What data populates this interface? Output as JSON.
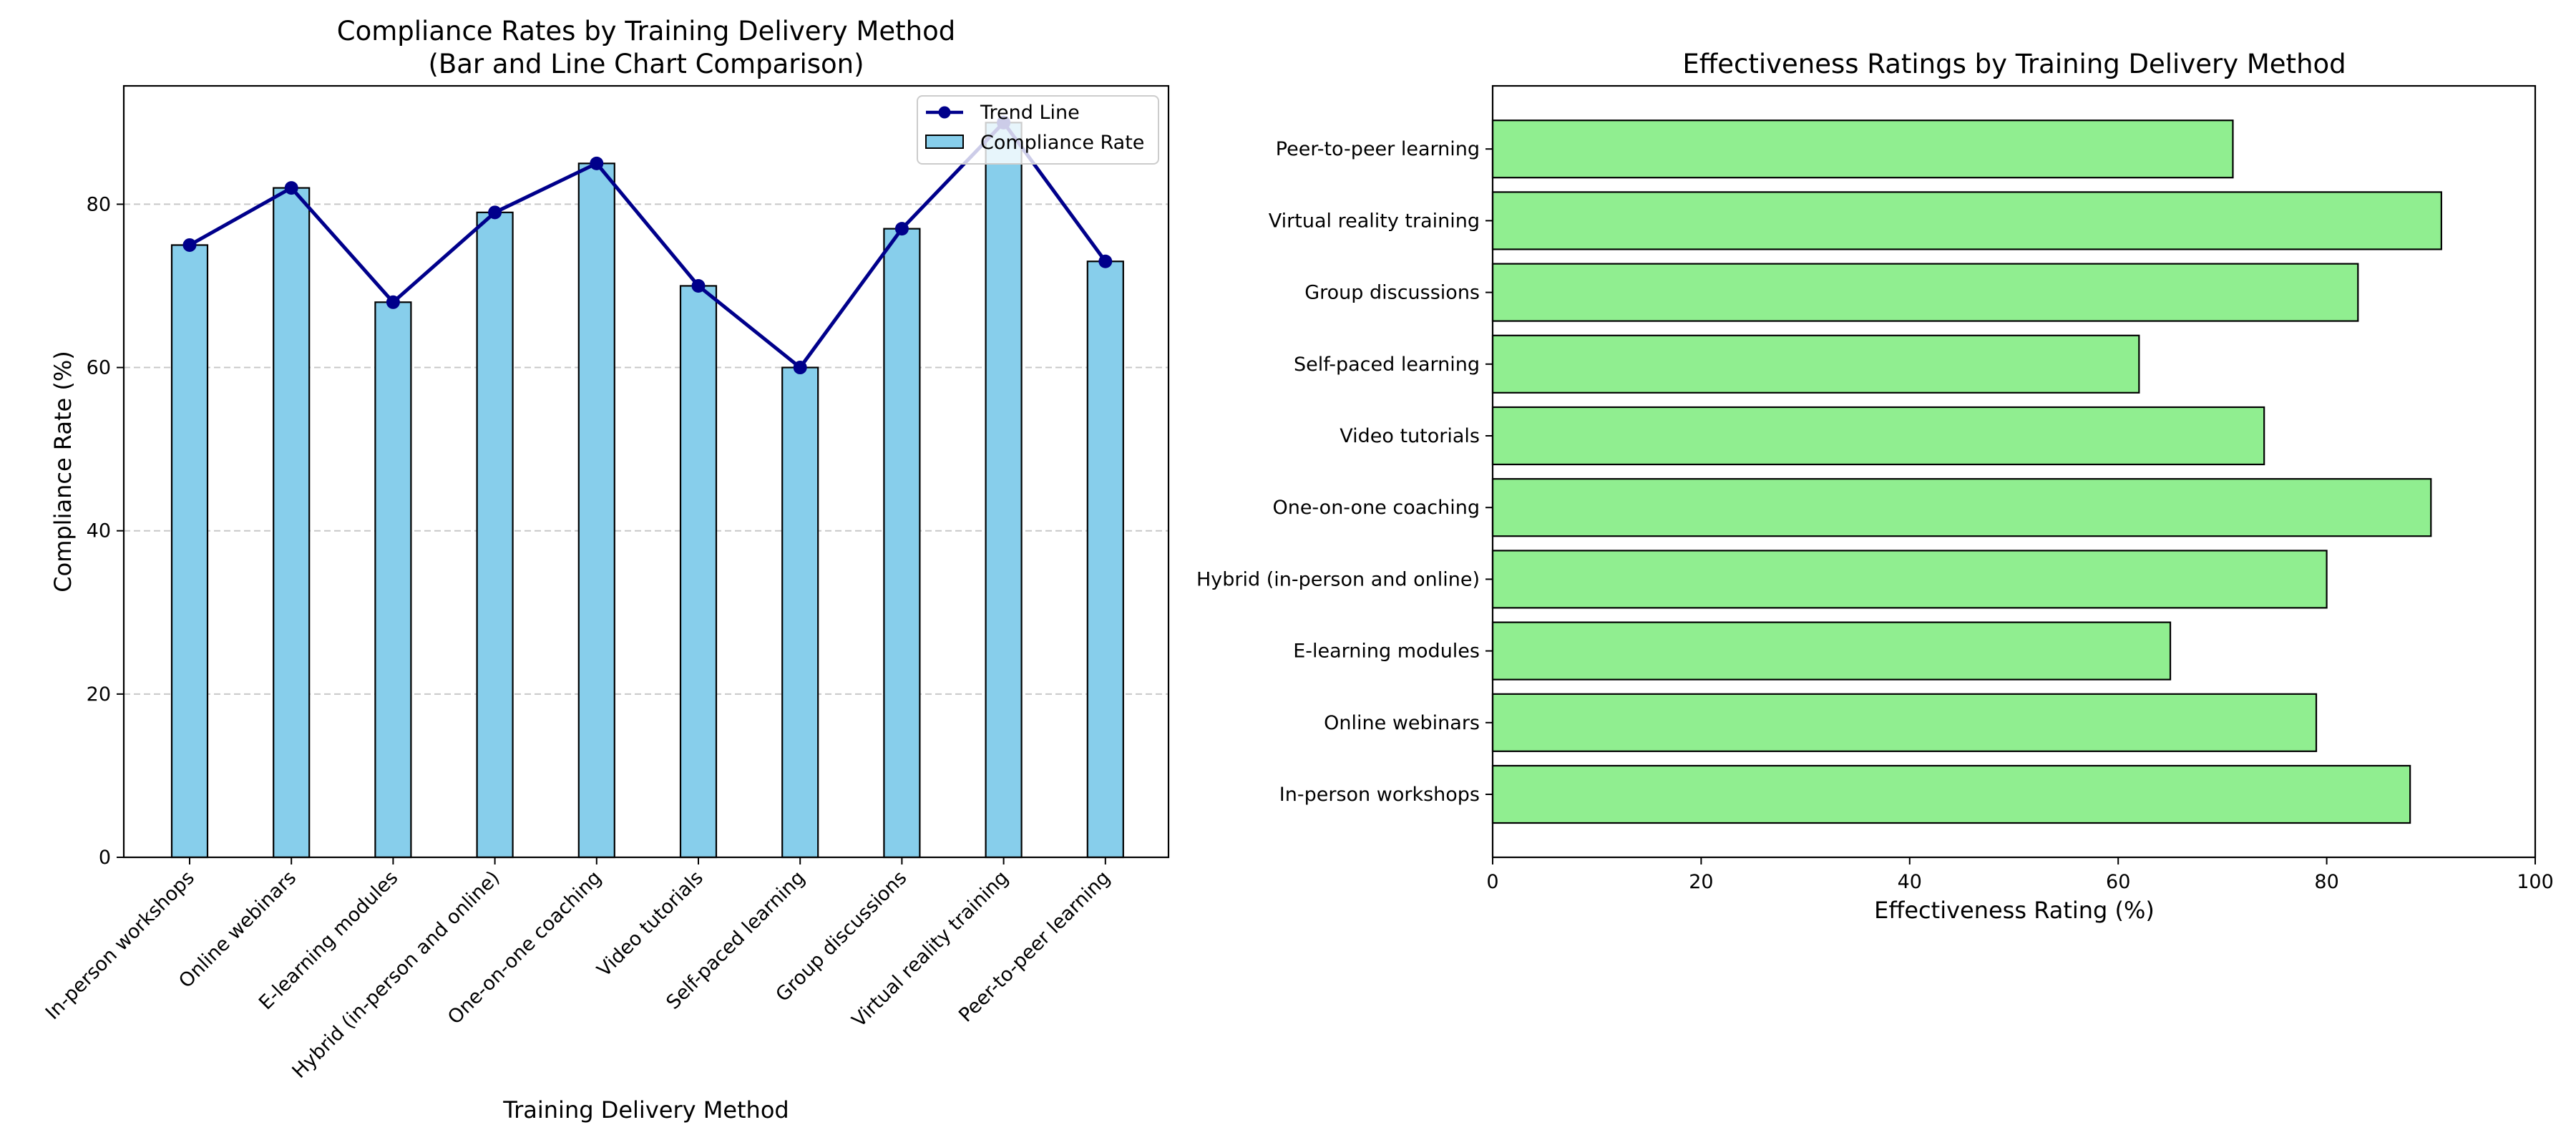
{
  "chart_data": [
    {
      "type": "bar",
      "title": "Compliance Rates by Training Delivery Method",
      "subtitle": "(Bar and Line Chart Comparison)",
      "xlabel": "Training Delivery Method",
      "ylabel": "Compliance Rate (%)",
      "categories": [
        "In-person workshops",
        "Online webinars",
        "E-learning modules",
        "Hybrid (in-person and online)",
        "One-on-one coaching",
        "Video tutorials",
        "Self-paced learning",
        "Group discussions",
        "Virtual reality training",
        "Peer-to-peer learning"
      ],
      "series": [
        {
          "name": "Compliance Rate",
          "type": "bar",
          "color": "#87CEEB",
          "values": [
            75,
            82,
            68,
            79,
            85,
            70,
            60,
            77,
            90,
            73
          ]
        },
        {
          "name": "Trend Line",
          "type": "line",
          "color": "#00008B",
          "values": [
            75,
            82,
            68,
            79,
            85,
            70,
            60,
            77,
            90,
            73
          ]
        }
      ],
      "ylim": [
        0,
        94.5
      ],
      "yticks": [
        0,
        20,
        40,
        60,
        80
      ],
      "grid": "y-dashed",
      "legend": "top-right"
    },
    {
      "type": "bar",
      "orientation": "horizontal",
      "title": "Effectiveness Ratings by Training Delivery Method",
      "xlabel": "Effectiveness Rating (%)",
      "categories": [
        "In-person workshops",
        "Online webinars",
        "E-learning modules",
        "Hybrid (in-person and online)",
        "One-on-one coaching",
        "Video tutorials",
        "Self-paced learning",
        "Group discussions",
        "Virtual reality training",
        "Peer-to-peer learning"
      ],
      "values": [
        88,
        79,
        65,
        80,
        90,
        74,
        62,
        83,
        91,
        71
      ],
      "color": "#90EE90",
      "xlim": [
        0,
        100
      ],
      "xticks": [
        0,
        20,
        40,
        60,
        80,
        100
      ],
      "grid": "off"
    }
  ]
}
